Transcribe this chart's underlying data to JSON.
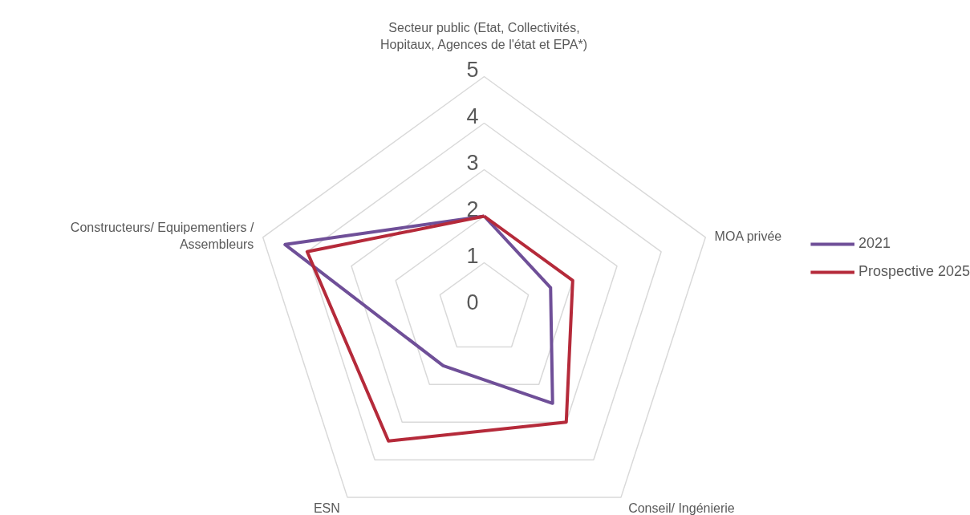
{
  "chart_data": {
    "type": "radar",
    "categories": [
      "Secteur public (Etat, Collectivités, Hopitaux, Agences de l'état et EPA*)",
      "MOA privée",
      "Conseil/ Ingénierie",
      "ESN",
      "Constructeurs/ Equipementiers / Assembleurs"
    ],
    "series": [
      {
        "name": "2021",
        "color": "#6f4f98",
        "values": [
          2,
          1.5,
          2.5,
          1.5,
          4.5
        ]
      },
      {
        "name": "Prospective 2025",
        "color": "#b52a3a",
        "values": [
          2,
          2,
          3,
          3.5,
          4
        ]
      }
    ],
    "ylim": [
      0,
      5
    ],
    "yticks": [
      0,
      1,
      2,
      3,
      4,
      5
    ],
    "grid": true,
    "legend": "right"
  }
}
